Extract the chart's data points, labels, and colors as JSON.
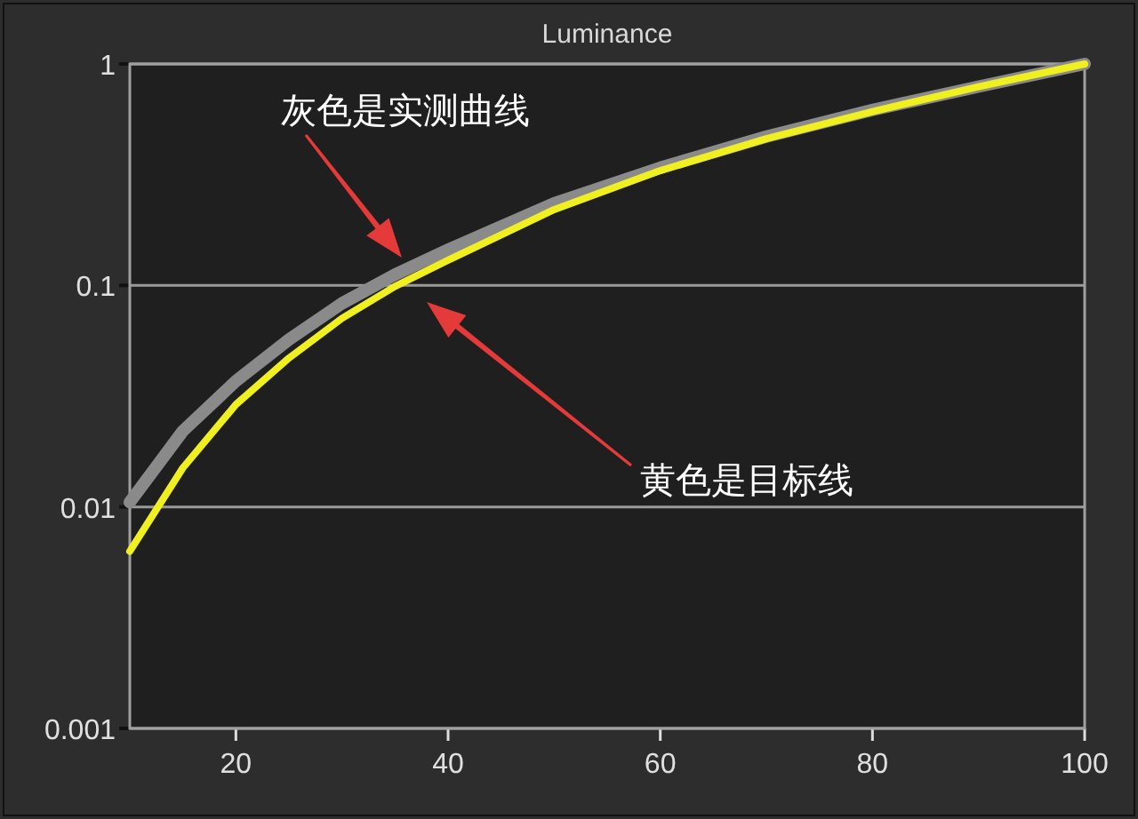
{
  "chart_data": {
    "type": "line",
    "title": "Luminance",
    "log": "y",
    "grid": "y",
    "xlim": [
      10,
      100
    ],
    "ylim": [
      0.001,
      1
    ],
    "xticks": [
      20,
      40,
      60,
      80,
      100
    ],
    "yticks": [
      0.001,
      0.01,
      0.1,
      1
    ],
    "x": [
      10,
      15,
      20,
      25,
      30,
      35,
      40,
      50,
      60,
      70,
      80,
      90,
      100
    ],
    "series": [
      {
        "color": "#8a8a8a",
        "values": [
          0.0105,
          0.022,
          0.037,
          0.057,
          0.083,
          0.112,
          0.145,
          0.235,
          0.34,
          0.47,
          0.62,
          0.79,
          1
        ]
      },
      {
        "color": "#f0f020",
        "values": [
          0.0063,
          0.015,
          0.029,
          0.047,
          0.071,
          0.099,
          0.13,
          0.22,
          0.33,
          0.46,
          0.61,
          0.79,
          1
        ]
      }
    ],
    "annotations": [
      "灰色是实测曲线",
      "黄色是目标线"
    ]
  }
}
